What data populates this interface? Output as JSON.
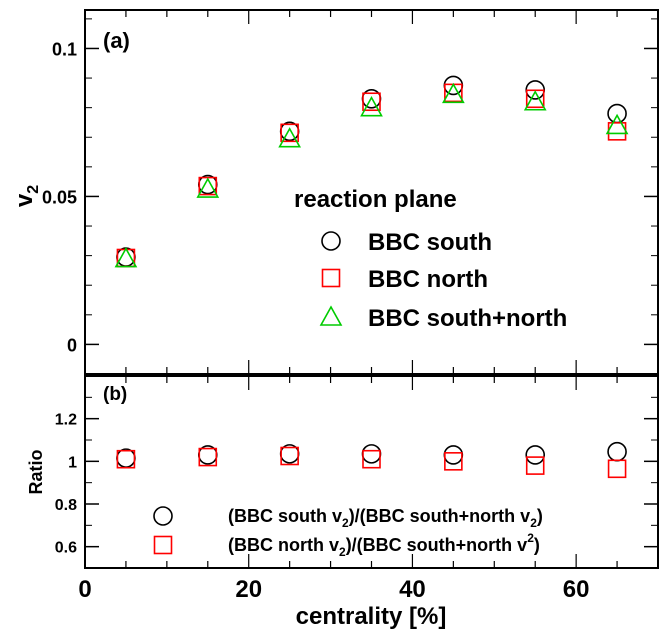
{
  "chart_data": [
    {
      "type": "scatter",
      "panel_label": "(a)",
      "ylabel": "v",
      "ylabel_sub": "2",
      "xlim": [
        0,
        70
      ],
      "ylim": [
        -0.01,
        0.113
      ],
      "yticks": [
        "0",
        "0.05",
        "0.1"
      ],
      "grid": false,
      "legend": {
        "title": "reaction plane",
        "placement": "center-right",
        "entries": [
          "BBC south",
          "BBC north",
          "BBC south+north"
        ]
      },
      "x": [
        5,
        15,
        25,
        35,
        45,
        55,
        65
      ],
      "series": [
        {
          "name": "BBC south",
          "marker": "circle",
          "color": "#000000",
          "values": [
            0.0295,
            0.054,
            0.072,
            0.083,
            0.0875,
            0.086,
            0.078
          ]
        },
        {
          "name": "BBC north",
          "marker": "square",
          "color": "#ff0000",
          "values": [
            0.0292,
            0.0535,
            0.0715,
            0.082,
            0.085,
            0.083,
            0.072
          ]
        },
        {
          "name": "BBC south+north",
          "marker": "triangle",
          "color": "#00cc00",
          "values": [
            0.029,
            0.0525,
            0.0695,
            0.08,
            0.0845,
            0.082,
            0.074
          ]
        }
      ]
    },
    {
      "type": "scatter",
      "panel_label": "(b)",
      "ylabel": "Ratio",
      "xlabel": "centrality [%]",
      "xlim": [
        0,
        70
      ],
      "xticks": [
        "0",
        "20",
        "40",
        "60"
      ],
      "ylim": [
        0.5,
        1.4
      ],
      "yticks": [
        "0.6",
        "0.8",
        "1",
        "1.2"
      ],
      "grid": false,
      "legend": {
        "placement": "bottom-center",
        "entries": [
          {
            "parts": [
              "(BBC south v",
              "2",
              ")/(BBC south+north v",
              "2",
              ")"
            ]
          },
          {
            "parts": [
              "(BBC north v",
              "2",
              ")/(BBC south+north v",
              "2",
              ")"
            ]
          }
        ]
      },
      "x": [
        5,
        15,
        25,
        35,
        45,
        55,
        65
      ],
      "series": [
        {
          "marker": "circle",
          "color": "#000000",
          "values": [
            1.015,
            1.03,
            1.035,
            1.035,
            1.03,
            1.03,
            1.045
          ]
        },
        {
          "marker": "square",
          "color": "#ff0000",
          "values": [
            1.01,
            1.02,
            1.025,
            1.01,
            1.0,
            0.98,
            0.965
          ]
        }
      ]
    }
  ]
}
